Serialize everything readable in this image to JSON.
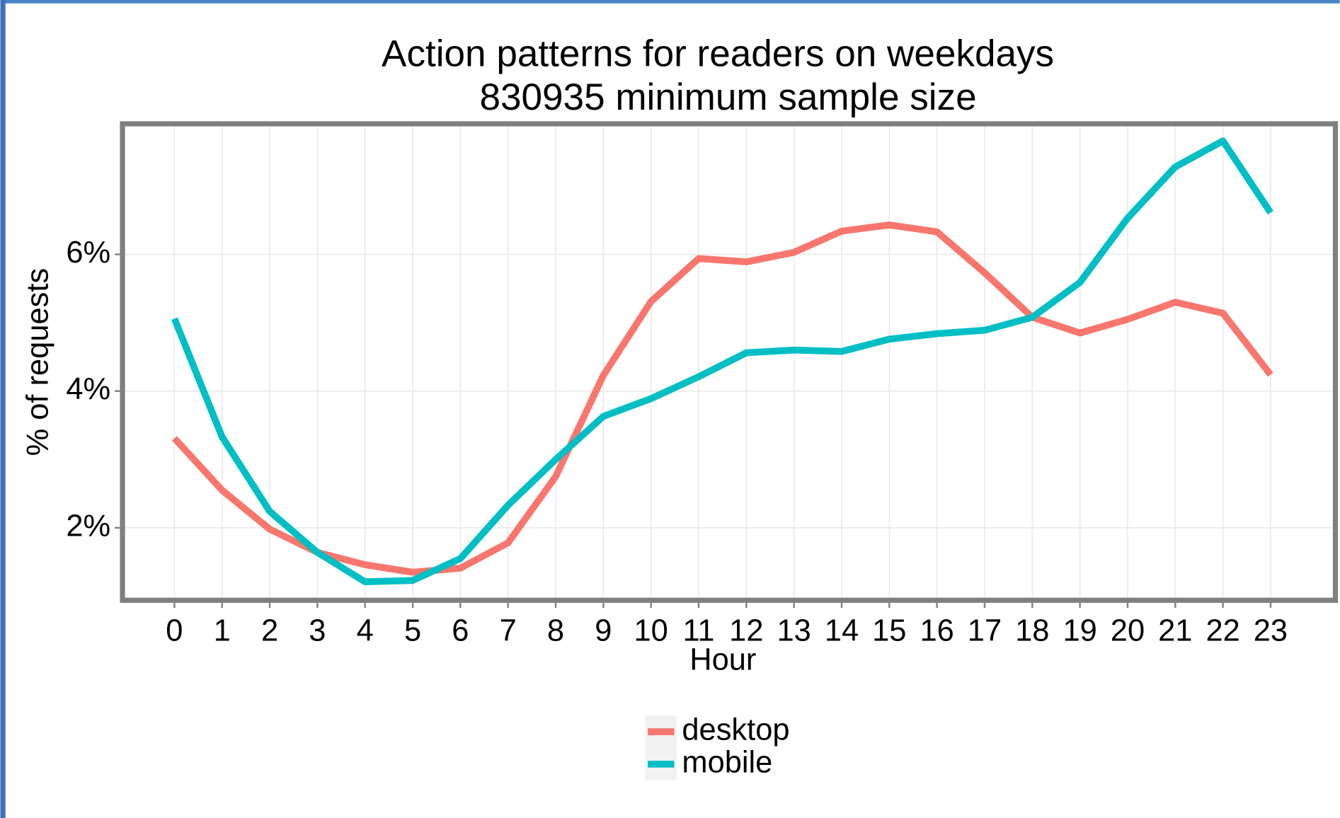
{
  "chart_data": {
    "type": "line",
    "title": "Action patterns for readers on weekdays",
    "subtitle": "830935 minimum sample size",
    "x_label": "Hour",
    "y_label": "% of requests",
    "x": [
      0,
      1,
      2,
      3,
      4,
      5,
      6,
      7,
      8,
      9,
      10,
      11,
      12,
      13,
      14,
      15,
      16,
      17,
      18,
      19,
      20,
      21,
      22,
      23
    ],
    "xlim": [
      -1.09,
      24.36
    ],
    "xticks": [
      0,
      1,
      2,
      3,
      4,
      5,
      6,
      7,
      8,
      9,
      10,
      11,
      12,
      13,
      14,
      15,
      16,
      17,
      18,
      19,
      20,
      21,
      22,
      23
    ],
    "ylim": [
      0.94,
      7.91
    ],
    "yticks": [
      {
        "value": 2,
        "label": "2%"
      },
      {
        "value": 4,
        "label": "4%"
      },
      {
        "value": 6,
        "label": "6%"
      }
    ],
    "grid": true,
    "legend": "bottom",
    "series": [
      {
        "name": "desktop",
        "color": "#f8766d",
        "values": [
          3.31,
          2.55,
          1.98,
          1.64,
          1.46,
          1.35,
          1.41,
          1.78,
          2.75,
          4.23,
          5.31,
          5.94,
          5.89,
          6.03,
          6.34,
          6.43,
          6.33,
          5.73,
          5.08,
          4.85,
          5.05,
          5.3,
          5.14,
          4.24
        ]
      },
      {
        "name": "mobile",
        "color": "#00bfc4",
        "values": [
          5.06,
          3.33,
          2.24,
          1.64,
          1.21,
          1.23,
          1.55,
          2.33,
          3.0,
          3.63,
          3.89,
          4.21,
          4.56,
          4.6,
          4.58,
          4.76,
          4.84,
          4.89,
          5.08,
          5.59,
          6.53,
          7.28,
          7.66,
          6.61
        ]
      }
    ]
  }
}
